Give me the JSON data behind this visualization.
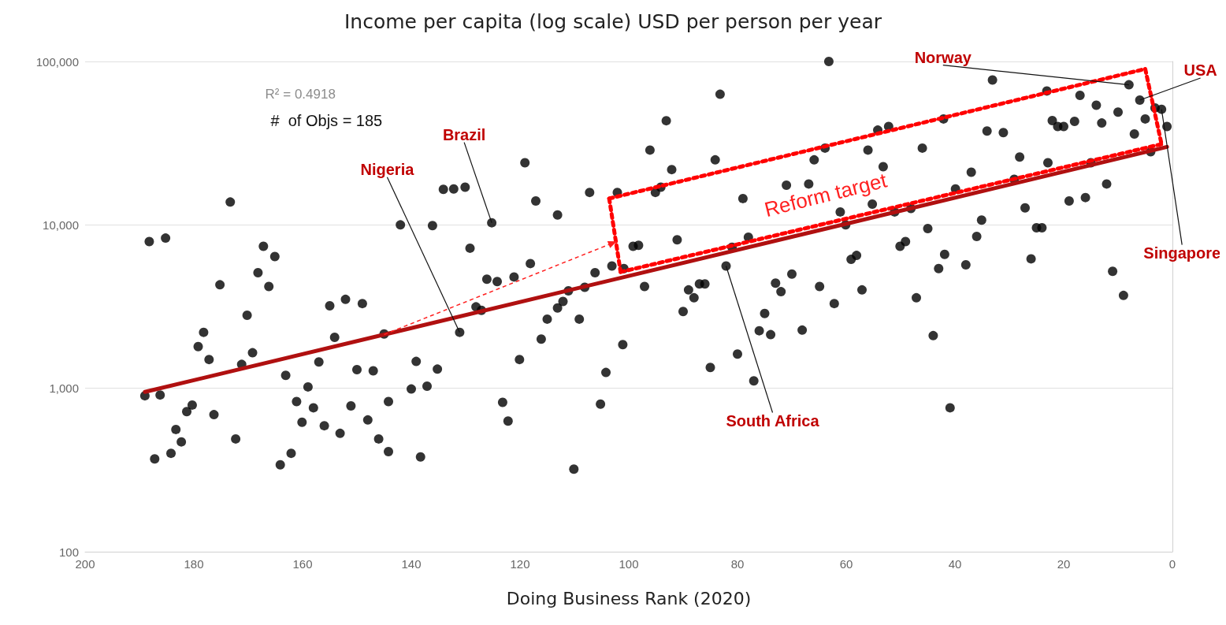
{
  "chart_data": {
    "type": "scatter",
    "title": "Income per capita (log scale) USD per person per year",
    "xlabel": "Doing Business Rank (2020)",
    "xlim": [
      200,
      0
    ],
    "xticks": [
      200,
      180,
      160,
      140,
      120,
      100,
      80,
      60,
      40,
      20,
      0
    ],
    "ylim": [
      100,
      100000
    ],
    "yticks": [
      {
        "value": 100,
        "label": "100"
      },
      {
        "value": 1000,
        "label": "1,000"
      },
      {
        "value": 10000,
        "label": "10,000"
      },
      {
        "value": 100000,
        "label": "100,000"
      }
    ],
    "log": "y",
    "grid": "y",
    "series": [
      {
        "color": "#000000",
        "marker": "circle",
        "x": [
          189,
          188.2,
          187.2,
          186.2,
          185.2,
          184.2,
          183.3,
          182.3,
          181.3,
          180.3,
          179.2,
          178.2,
          177.2,
          176.3,
          175.2,
          173.3,
          172.3,
          171.2,
          170.2,
          169.2,
          168.2,
          167.2,
          166.2,
          165.1,
          164.1,
          163.1,
          162.1,
          161.1,
          160.1,
          159,
          158,
          157,
          156,
          155,
          154.1,
          153.1,
          152.1,
          151.1,
          150,
          149,
          148,
          147,
          146,
          145,
          144.2,
          144.2,
          142,
          140,
          139.1,
          138.3,
          137.1,
          136.1,
          135.2,
          134.1,
          132.2,
          130.1,
          131.1,
          129.2,
          128.1,
          127.1,
          126.1,
          125.2,
          124.2,
          123.2,
          122.2,
          121.1,
          120.1,
          119.1,
          118.1,
          117.1,
          116.1,
          115,
          113.1,
          113.1,
          112.1,
          111.1,
          110.1,
          109.1,
          108.1,
          107.2,
          106.2,
          105.2,
          104.2,
          103.1,
          102.1,
          101.1,
          100.9,
          99.2,
          98.2,
          97.1,
          96.1,
          95.1,
          94.1,
          93.1,
          92.1,
          91.1,
          90,
          89,
          88,
          87,
          86,
          85,
          84.1,
          83.2,
          82.1,
          81,
          80,
          79,
          78,
          77,
          76,
          75,
          73.9,
          73,
          72,
          71,
          70,
          68.1,
          66.9,
          65.9,
          64.9,
          63.9,
          63.2,
          62.2,
          61.1,
          60.1,
          59.1,
          58.1,
          57.1,
          56,
          55.2,
          54.2,
          53.2,
          52.2,
          51.1,
          50.1,
          49.1,
          48.1,
          47.1,
          46,
          45,
          44,
          43,
          42.1,
          41.9,
          40.9,
          39.9,
          38,
          37,
          36,
          35.1,
          34.1,
          33.1,
          31.1,
          29.1,
          28.1,
          27.1,
          26,
          25,
          24,
          23.1,
          22.9,
          22.1,
          21.1,
          20,
          19,
          18,
          17,
          16,
          15,
          14,
          13,
          12.1,
          11,
          10,
          9,
          8,
          7,
          6,
          5,
          4,
          3.2,
          2,
          1
        ],
        "values": [
          900,
          7900,
          370,
          910,
          8300,
          400,
          560,
          470,
          720,
          790,
          1800,
          2200,
          1500,
          690,
          4300,
          13800,
          490,
          1400,
          2800,
          1650,
          5100,
          7400,
          4200,
          6400,
          340,
          1200,
          400,
          830,
          620,
          1020,
          760,
          1450,
          590,
          3200,
          2050,
          530,
          3500,
          780,
          1300,
          3300,
          640,
          1280,
          490,
          2150,
          410,
          830,
          10000,
          990,
          1460,
          380,
          1030,
          9900,
          1310,
          16500,
          16600,
          17000,
          2200,
          7200,
          3150,
          3000,
          4650,
          10300,
          4500,
          820,
          630,
          4800,
          1500,
          24000,
          5800,
          14000,
          2000,
          2650,
          11500,
          3100,
          3400,
          3950,
          320,
          2650,
          4150,
          15800,
          5100,
          800,
          1250,
          5600,
          15800,
          1850,
          5400,
          7400,
          7500,
          4200,
          28700,
          15800,
          17000,
          43400,
          21800,
          8100,
          2950,
          4000,
          3580,
          4350,
          4350,
          1340,
          25000,
          63000,
          5600,
          7300,
          1620,
          14500,
          8400,
          1110,
          2250,
          2870,
          2130,
          4400,
          3900,
          17500,
          5000,
          2270,
          17800,
          25000,
          4200,
          29500,
          100000,
          3300,
          12000,
          10000,
          6150,
          6500,
          4000,
          28700,
          13400,
          38000,
          22700,
          40000,
          12000,
          7400,
          7900,
          12600,
          3580,
          29500,
          9500,
          2100,
          5400,
          44500,
          6600,
          760,
          16600,
          5700,
          21000,
          8500,
          10700,
          37500,
          77000,
          36700,
          19000,
          26000,
          12700,
          6200,
          9600,
          9600,
          66000,
          24000,
          43500,
          40000,
          40000,
          14000,
          43000,
          62000,
          14700,
          24000,
          54000,
          42000,
          17800,
          5200,
          49000,
          3700,
          72000,
          36000,
          58000,
          44500,
          28000,
          52000,
          51000,
          40000
        ]
      },
      {
        "type": "line",
        "color": "#b01010",
        "x": [
          189,
          1
        ],
        "values": [
          950,
          30000
        ],
        "line_style": "solid"
      },
      {
        "type": "line",
        "color": "#ff0000",
        "x": [
          103.6,
          5
        ],
        "values": [
          14500,
          90000
        ],
        "line_style": "dotted"
      },
      {
        "type": "line",
        "color": "#ff0000",
        "x": [
          5,
          2
        ],
        "values": [
          90000,
          31200
        ],
        "line_style": "dotted"
      },
      {
        "type": "line",
        "color": "#ff0000",
        "x": [
          101.5,
          2
        ],
        "values": [
          5150,
          31200
        ],
        "line_style": "dotted"
      },
      {
        "type": "line",
        "color": "#ff0000",
        "x": [
          103.6,
          101.5
        ],
        "values": [
          14500,
          5150
        ],
        "line_style": "dotted"
      }
    ],
    "annotations": [
      "R² = 0.4918",
      "#  of Objs = 185",
      "Reform target",
      {
        "text": "Norway",
        "x": 8,
        "y": 72000
      },
      {
        "text": "USA",
        "x": 6,
        "y": 58000
      },
      {
        "text": "Singapore",
        "x": 2,
        "y": 51000
      },
      {
        "text": "Brazil",
        "x": 125.2,
        "y": 10300
      },
      {
        "text": "Nigeria",
        "x": 131.1,
        "y": 2200
      },
      {
        "text": "South Africa",
        "x": 82.1,
        "y": 5600
      }
    ]
  }
}
